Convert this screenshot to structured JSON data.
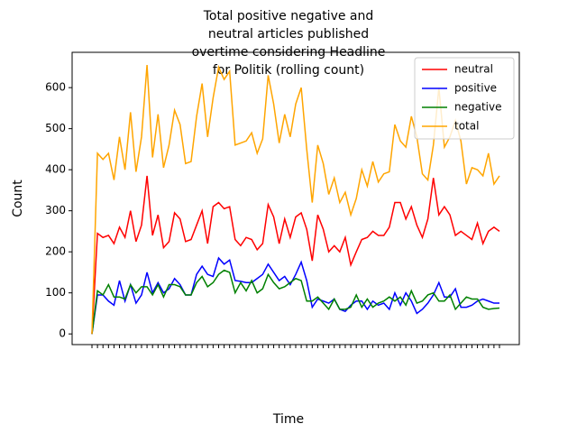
{
  "chart_data": {
    "type": "line",
    "title": [
      "Total positive negative and",
      "neutral articles published",
      "overtime considering Headline",
      "for Politik (rolling count)"
    ],
    "xlabel": "Time",
    "ylabel": "Count",
    "ylim": [
      -26,
      686
    ],
    "yticks": [
      0,
      100,
      200,
      300,
      400,
      500,
      600
    ],
    "legend": "upper right",
    "grid": false,
    "categories": [
      null,
      null,
      null,
      null,
      null,
      null,
      null,
      null,
      null,
      null,
      null,
      null,
      null,
      null,
      null,
      null,
      null,
      null,
      null,
      null,
      null,
      null,
      null,
      null,
      null,
      null,
      null,
      null,
      null,
      null,
      null,
      null,
      null,
      null,
      null,
      null,
      null,
      null,
      null,
      null,
      null,
      null,
      null,
      null,
      null,
      null,
      null,
      null,
      null,
      null,
      null,
      null,
      null,
      null,
      null,
      null,
      null,
      null,
      null,
      null,
      null,
      null,
      null,
      null,
      null,
      null,
      null,
      null,
      null,
      null,
      null,
      null,
      null,
      null,
      null
    ],
    "series": [
      {
        "name": "neutral",
        "color": "#ff0000",
        "values": [
          0,
          245,
          235,
          240,
          220,
          260,
          235,
          300,
          225,
          265,
          385,
          240,
          290,
          210,
          225,
          295,
          280,
          225,
          230,
          265,
          300,
          220,
          310,
          320,
          305,
          310,
          230,
          215,
          235,
          230,
          205,
          220,
          315,
          285,
          220,
          280,
          235,
          285,
          295,
          255,
          178,
          290,
          255,
          200,
          215,
          200,
          235,
          168,
          200,
          230,
          235,
          250,
          240,
          240,
          260,
          320,
          320,
          280,
          310,
          265,
          235,
          280,
          380,
          290,
          310,
          290,
          240,
          250,
          240,
          230,
          270,
          220,
          250,
          260,
          250
        ]
      },
      {
        "name": "positive",
        "color": "#0000ff",
        "values": [
          0,
          95,
          95,
          80,
          70,
          130,
          80,
          120,
          75,
          95,
          150,
          100,
          125,
          100,
          110,
          135,
          120,
          95,
          95,
          145,
          165,
          145,
          140,
          185,
          170,
          180,
          130,
          128,
          125,
          125,
          135,
          145,
          170,
          150,
          130,
          140,
          120,
          145,
          175,
          130,
          65,
          85,
          80,
          75,
          85,
          60,
          55,
          70,
          80,
          80,
          60,
          80,
          70,
          75,
          60,
          100,
          70,
          100,
          80,
          50,
          60,
          75,
          95,
          125,
          90,
          90,
          110,
          65,
          65,
          70,
          80,
          85,
          80,
          75,
          75
        ]
      },
      {
        "name": "negative",
        "color": "#008000",
        "values": [
          0,
          105,
          95,
          120,
          90,
          90,
          85,
          120,
          100,
          115,
          115,
          95,
          120,
          90,
          120,
          120,
          115,
          95,
          95,
          125,
          140,
          115,
          125,
          145,
          155,
          150,
          100,
          125,
          105,
          130,
          100,
          110,
          145,
          125,
          110,
          115,
          125,
          135,
          130,
          80,
          80,
          90,
          75,
          60,
          85,
          60,
          60,
          65,
          95,
          65,
          85,
          65,
          75,
          80,
          90,
          80,
          90,
          70,
          105,
          75,
          80,
          95,
          100,
          80,
          80,
          95,
          60,
          75,
          90,
          85,
          85,
          65,
          60,
          62,
          63
        ]
      },
      {
        "name": "total",
        "color": "#ffa500",
        "values": [
          0,
          440,
          425,
          440,
          375,
          480,
          400,
          540,
          395,
          480,
          655,
          430,
          535,
          405,
          460,
          545,
          510,
          415,
          420,
          530,
          610,
          480,
          575,
          650,
          620,
          640,
          460,
          465,
          470,
          490,
          440,
          475,
          630,
          560,
          465,
          535,
          480,
          560,
          600,
          450,
          320,
          460,
          415,
          340,
          380,
          320,
          345,
          290,
          330,
          400,
          360,
          420,
          370,
          390,
          395,
          510,
          470,
          455,
          530,
          480,
          390,
          375,
          460,
          600,
          455,
          480,
          520,
          470,
          365,
          405,
          400,
          385,
          440,
          365,
          385
        ]
      }
    ]
  }
}
